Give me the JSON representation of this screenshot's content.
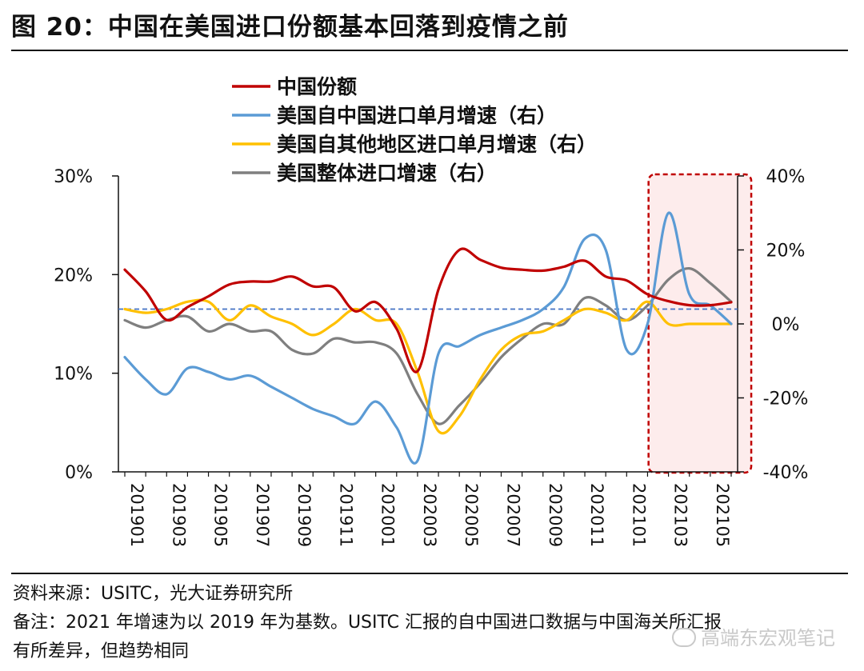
{
  "header": {
    "title": "图 20：中国在美国进口份额基本回落到疫情之前"
  },
  "chart_data": {
    "type": "line",
    "title": "图 20：中国在美国进口份额基本回落到疫情之前",
    "left_axis": {
      "range": [
        0,
        30
      ],
      "ticks": [
        "0%",
        "10%",
        "20%",
        "30%"
      ]
    },
    "right_axis": {
      "range": [
        -40,
        40
      ],
      "ticks": [
        "-40%",
        "-20%",
        "0%",
        "20%",
        "40%"
      ]
    },
    "x_tick_labels": [
      "201901",
      "201903",
      "201905",
      "201907",
      "201909",
      "201911",
      "202001",
      "202003",
      "202005",
      "202007",
      "202009",
      "202011",
      "202101",
      "202103",
      "202105"
    ],
    "series": [
      {
        "name": "中国份额",
        "axis": "left",
        "color": "#c00000",
        "values": [
          20.5,
          18.3,
          15.4,
          16.7,
          17.8,
          19.0,
          19.3,
          19.3,
          19.8,
          18.8,
          18.7,
          16.3,
          17.2,
          14.5,
          10.2,
          18.5,
          22.5,
          21.5,
          20.7,
          20.5,
          20.4,
          20.8,
          21.4,
          19.8,
          19.4,
          18.0,
          17.3,
          16.9,
          16.9,
          17.2
        ]
      },
      {
        "name": "美国自中国进口单月增速（右）",
        "axis": "right",
        "color": "#5b9bd5",
        "values": [
          -9,
          -15,
          -19,
          -12,
          -13,
          -15,
          -14,
          -17,
          -20,
          -23,
          -25,
          -27,
          -21,
          -28,
          -37,
          -8,
          -6,
          -3,
          -1,
          1,
          4,
          10,
          23,
          20,
          -7,
          0,
          30,
          8,
          5,
          0
        ]
      },
      {
        "name": "美国自其他地区进口单月增速（右）",
        "axis": "right",
        "color": "#ffc000",
        "values": [
          4,
          3,
          4,
          6,
          6,
          1,
          5,
          2,
          0,
          -3,
          0,
          4,
          1,
          0,
          -13,
          -29,
          -25,
          -15,
          -7,
          -3,
          -2,
          1,
          4,
          3,
          1,
          6,
          0,
          0,
          0,
          0
        ]
      },
      {
        "name": "美国整体进口增速（右）",
        "axis": "right",
        "color": "#7f7f7f",
        "values": [
          1,
          -1,
          1,
          2,
          -2,
          0,
          -2,
          -2,
          -7,
          -8,
          -4,
          -5,
          -5,
          -8,
          -19,
          -27,
          -22,
          -16,
          -9,
          -4,
          0,
          0,
          7,
          5,
          1,
          5,
          12,
          15,
          11,
          6
        ]
      }
    ],
    "baseline": {
      "axis": "left",
      "value": 16.5,
      "style": "dashed",
      "color": "#4472c4"
    },
    "highlight": {
      "x_range": [
        25.2,
        29.5
      ],
      "fill": "#fdecec",
      "border": "#c00000",
      "style": "dashed"
    },
    "legend_position": "top-center"
  },
  "notes": {
    "source": "资料来源：USITC，光大证券研究所",
    "remark_line1": "备注：2021 年增速为以 2019 年为基数。USITC 汇报的自中国进口数据与中国海关所汇报",
    "remark_line2": "有所差异，但趋势相同"
  },
  "watermark": {
    "text": "高端东宏观笔记"
  }
}
